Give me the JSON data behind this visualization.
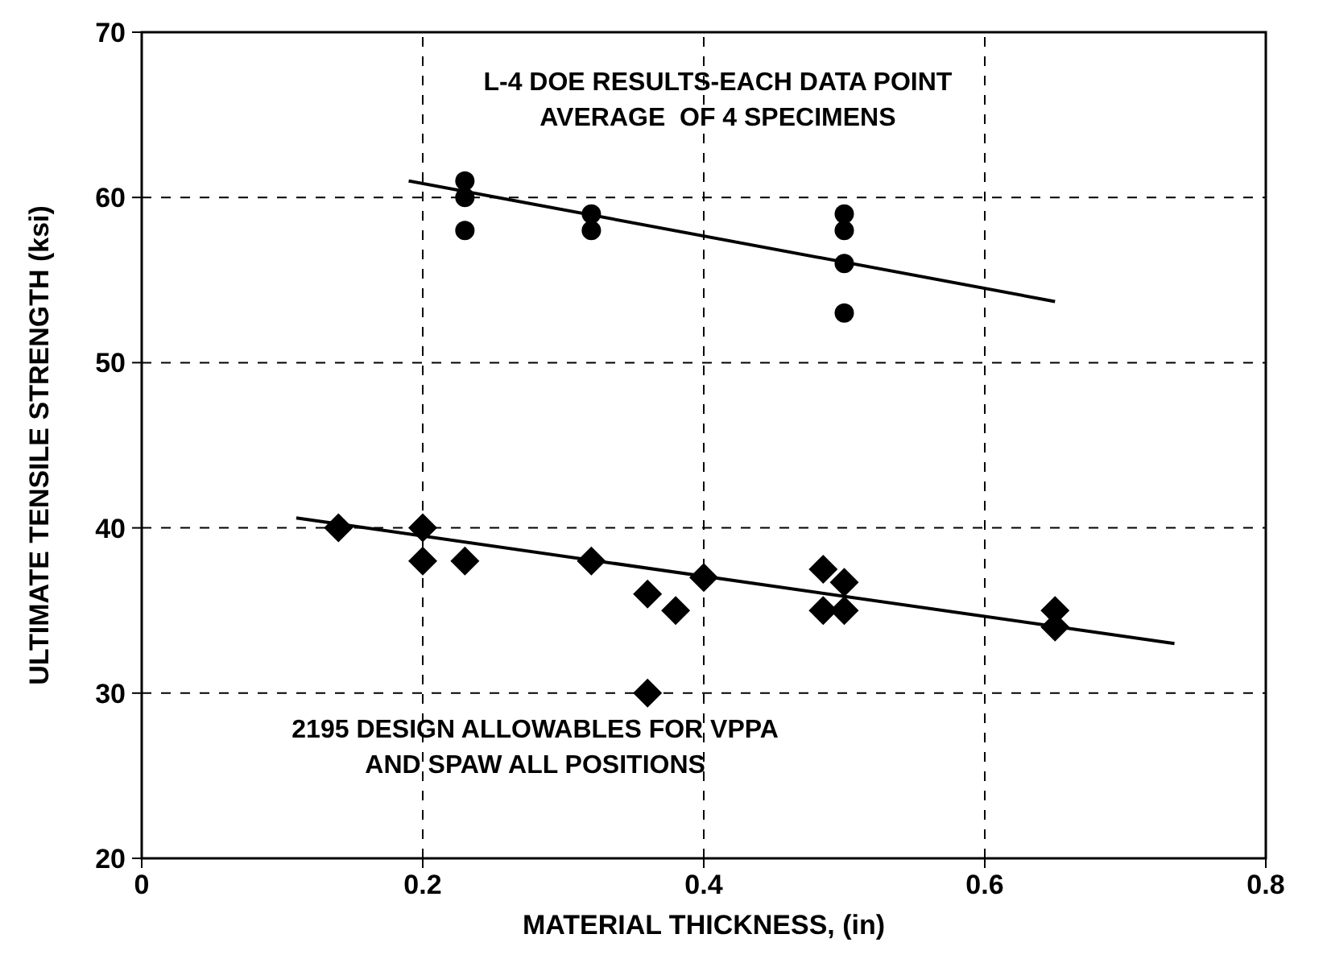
{
  "chart_data": {
    "type": "scatter",
    "xlabel": "MATERIAL THICKNESS, (in)",
    "ylabel": "ULTIMATE TENSILE STRENGTH (ksi)",
    "xlim": [
      0,
      0.8
    ],
    "xticks": [
      0,
      0.2,
      0.4,
      0.6,
      0.8
    ],
    "ylim": [
      20,
      70
    ],
    "yticks": [
      20,
      30,
      40,
      50,
      60,
      70
    ],
    "grid": true,
    "annotations": [
      "L-4 DOE RESULTS-EACH DATA POINT\nAVERAGE  OF 4 SPECIMENS",
      "2195 DESIGN ALLOWABLES FOR VPPA\nAND SPAW ALL POSITIONS"
    ],
    "series": [
      {
        "marker": "circle",
        "color": "#000000",
        "x": [
          0.23,
          0.23,
          0.23,
          0.32,
          0.32,
          0.5,
          0.5,
          0.5,
          0.5
        ],
        "values": [
          61,
          60,
          58,
          59,
          58,
          59,
          58,
          56,
          53
        ]
      },
      {
        "marker": "diamond",
        "color": "#000000",
        "x": [
          0.14,
          0.2,
          0.2,
          0.23,
          0.32,
          0.36,
          0.36,
          0.38,
          0.4,
          0.485,
          0.485,
          0.5,
          0.5,
          0.65,
          0.65
        ],
        "values": [
          40,
          40,
          38,
          38,
          38,
          36,
          30,
          35,
          37,
          37.5,
          35,
          36.7,
          35,
          35,
          34
        ]
      },
      {
        "type": "line",
        "marker": "none",
        "color": "#000000",
        "x": [
          0.19,
          0.65
        ],
        "values": [
          61,
          53.7
        ]
      },
      {
        "type": "line",
        "marker": "none",
        "color": "#000000",
        "x": [
          0.11,
          0.735
        ],
        "values": [
          40.6,
          33
        ]
      }
    ]
  }
}
